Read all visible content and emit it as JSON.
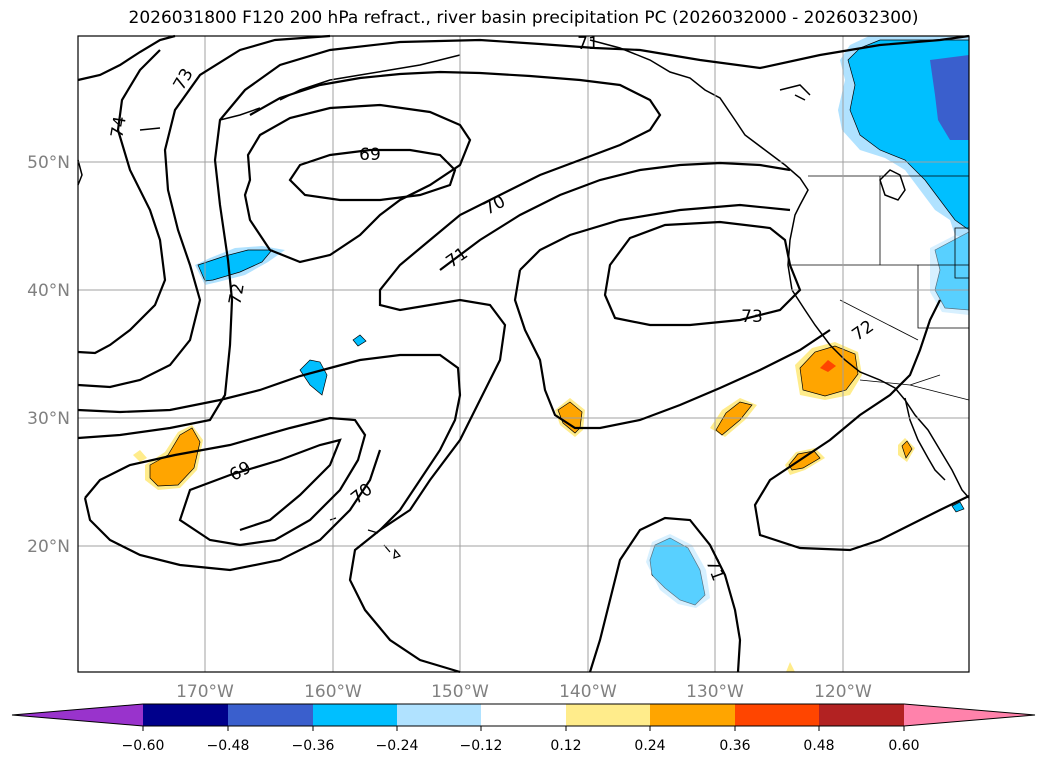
{
  "title": "2026031800 F120 200 hPa refract., river basin precipitation PC (2026032000 - 2026032300)",
  "map": {
    "lat_labels": [
      "50°N",
      "40°N",
      "30°N",
      "20°N"
    ],
    "lon_labels": [
      "170°W",
      "160°W",
      "150°W",
      "140°W",
      "130°W",
      "120°W"
    ],
    "contour_labels": [
      "73",
      "74",
      "69",
      "70",
      "71",
      "71",
      "72",
      "73",
      "72",
      "69",
      "70",
      "71"
    ]
  },
  "colorbar": {
    "ticks": [
      "−0.60",
      "−0.48",
      "−0.36",
      "−0.24",
      "−0.12",
      "0.12",
      "0.24",
      "0.36",
      "0.48",
      "0.60"
    ],
    "colors": [
      "#9933cc",
      "#00008b",
      "#3a5fcd",
      "#00bfff",
      "#b0e2ff",
      "#ffffff",
      "#ffec8b",
      "#ffa500",
      "#ff4500",
      "#b22222",
      "#ff82ab"
    ]
  }
}
